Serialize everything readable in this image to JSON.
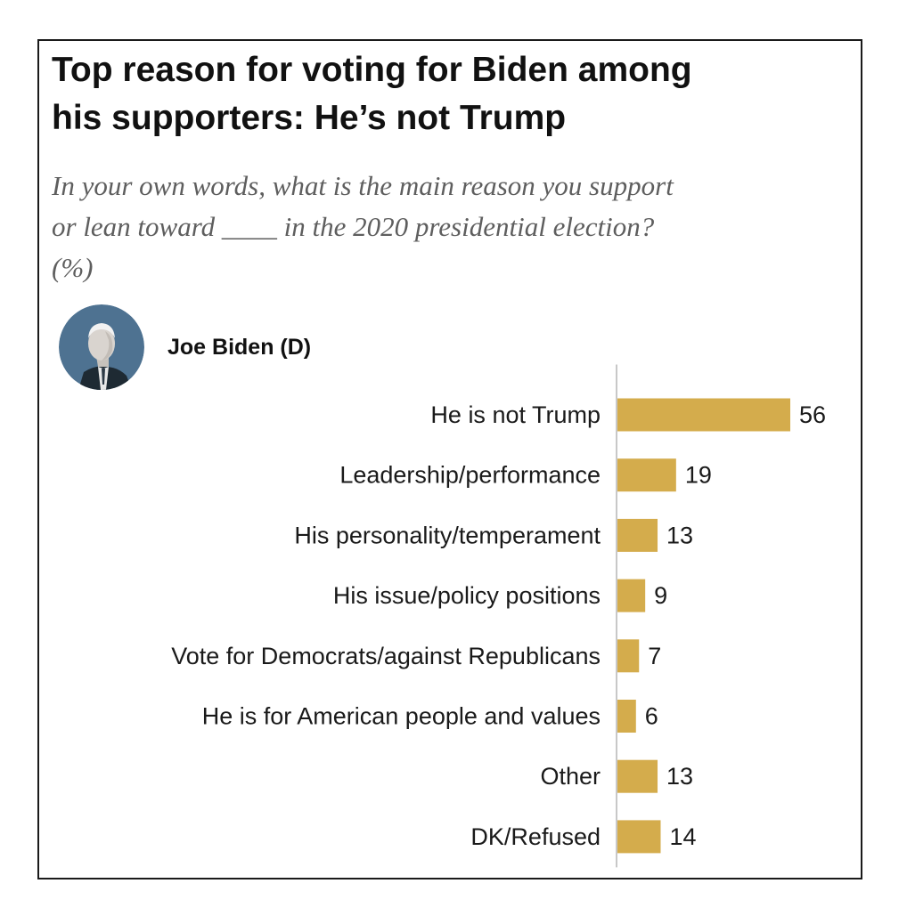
{
  "title_lines": [
    "Top reason for voting for Biden among",
    "his supporters: He’s not Trump"
  ],
  "subtitle_lines": [
    "In your own words, what is the main reason you support",
    "or lean toward ____ in the 2020 presidential election?",
    "(%)"
  ],
  "candidate": {
    "name": "Joe Biden (D)",
    "avatar_icon": "candidate-portrait-icon"
  },
  "colors": {
    "bar": "#D4AC4C",
    "axis": "#c8c8c8",
    "avatar_bg": "#4E7291",
    "text": "#1a1a1a",
    "subtitle": "#5e5e5e"
  },
  "chart_data": {
    "type": "bar",
    "orientation": "horizontal",
    "title": "Top reason for voting for Biden among his supporters: He’s not Trump",
    "subtitle": "In your own words, what is the main reason you support or lean toward ____ in the 2020 presidential election? (%)",
    "series_name": "Joe Biden (D)",
    "categories": [
      "He is not Trump",
      "Leadership/performance",
      "His personality/temperament",
      "His issue/policy positions",
      "Vote for Democrats/against Republicans",
      "He is for American people and values",
      "Other",
      "DK/Refused"
    ],
    "values": [
      56,
      19,
      13,
      9,
      7,
      6,
      13,
      14
    ],
    "value_labels": [
      "56",
      "19",
      "13",
      "9",
      "7",
      "6",
      "13",
      "14"
    ],
    "unit": "%",
    "xlim": [
      0,
      56
    ],
    "grid": false,
    "legend": "none"
  }
}
